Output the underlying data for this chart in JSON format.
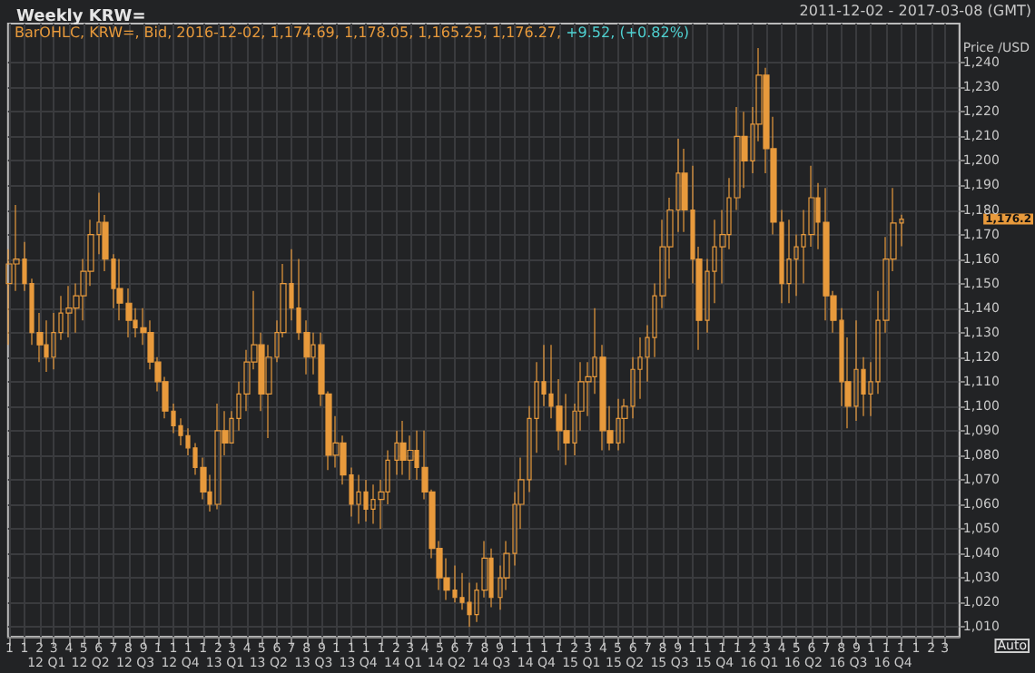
{
  "chart_data": {
    "type": "candlestick",
    "title": "Weekly KRW=",
    "subtitle": "2011-12-02 - 2017-03-08 (GMT)",
    "ylabel": "Price /USD",
    "color": "#e89a3c",
    "grid": true,
    "annotations": [
      "BarOHLC, KRW=, Bid, 2016-12-02, 1,174.69, 1,178.05, 1,165.25, 1,176.27,",
      "+9.52, (+0.82%)",
      "1,176.2",
      "Auto"
    ],
    "x": [
      "2011-12-01",
      "2011-12-15",
      "2012-01-01",
      "2012-01-15",
      "2012-02-01",
      "2012-02-15",
      "2012-03-01",
      "2012-03-15",
      "2012-04-01",
      "2012-04-15",
      "2012-05-01",
      "2012-05-15",
      "2012-06-01",
      "2012-06-15",
      "2012-07-01",
      "2012-07-15",
      "2012-08-01",
      "2012-08-15",
      "2012-09-01",
      "2012-09-15",
      "2012-10-01",
      "2012-10-15",
      "2012-11-01",
      "2012-11-15",
      "2012-12-01",
      "2012-12-15",
      "2013-01-01",
      "2013-01-15",
      "2013-02-01",
      "2013-02-15",
      "2013-03-01",
      "2013-03-15",
      "2013-04-01",
      "2013-04-15",
      "2013-05-01",
      "2013-05-15",
      "2013-06-01",
      "2013-06-15",
      "2013-07-01",
      "2013-07-15",
      "2013-08-01",
      "2013-08-15",
      "2013-09-01",
      "2013-09-15",
      "2013-10-01",
      "2013-10-15",
      "2013-11-01",
      "2013-11-15",
      "2013-12-01",
      "2013-12-15",
      "2014-01-01",
      "2014-01-15",
      "2014-02-01",
      "2014-02-15",
      "2014-03-01",
      "2014-03-15",
      "2014-04-01",
      "2014-04-15",
      "2014-05-01",
      "2014-05-15",
      "2014-06-01",
      "2014-06-15",
      "2014-07-01",
      "2014-07-15",
      "2014-08-01",
      "2014-08-15",
      "2014-09-01",
      "2014-09-15",
      "2014-10-01",
      "2014-10-15",
      "2014-11-01",
      "2014-11-15",
      "2014-12-01",
      "2014-12-15",
      "2015-01-01",
      "2015-01-15",
      "2015-02-01",
      "2015-02-15",
      "2015-03-01",
      "2015-03-15",
      "2015-04-01",
      "2015-04-15",
      "2015-05-01",
      "2015-05-15",
      "2015-06-01",
      "2015-06-15",
      "2015-07-01",
      "2015-07-15",
      "2015-08-01",
      "2015-08-15",
      "2015-09-01",
      "2015-09-15",
      "2015-10-01",
      "2015-10-15",
      "2015-11-01",
      "2015-11-15",
      "2015-12-01",
      "2015-12-15",
      "2016-01-01",
      "2016-01-15",
      "2016-02-01",
      "2016-02-15",
      "2016-03-01",
      "2016-03-15",
      "2016-04-01",
      "2016-04-15",
      "2016-05-01",
      "2016-05-15",
      "2016-06-01",
      "2016-06-15",
      "2016-07-01",
      "2016-07-15",
      "2016-08-01",
      "2016-08-15",
      "2016-09-01",
      "2016-09-15",
      "2016-10-01",
      "2016-10-15",
      "2016-11-01",
      "2016-11-15",
      "2016-12-02"
    ],
    "ohlc": [
      [
        1150,
        1164,
        1125,
        1158
      ],
      [
        1158,
        1182,
        1147,
        1160
      ],
      [
        1160,
        1167,
        1147,
        1150
      ],
      [
        1150,
        1152,
        1125,
        1130
      ],
      [
        1130,
        1138,
        1118,
        1125
      ],
      [
        1125,
        1135,
        1114,
        1120
      ],
      [
        1120,
        1138,
        1115,
        1130
      ],
      [
        1130,
        1145,
        1127,
        1138
      ],
      [
        1138,
        1149,
        1128,
        1140
      ],
      [
        1140,
        1150,
        1130,
        1145
      ],
      [
        1145,
        1160,
        1135,
        1155
      ],
      [
        1155,
        1176,
        1149,
        1170
      ],
      [
        1170,
        1187,
        1162,
        1175
      ],
      [
        1175,
        1178,
        1155,
        1160
      ],
      [
        1160,
        1162,
        1140,
        1148
      ],
      [
        1148,
        1160,
        1135,
        1142
      ],
      [
        1142,
        1148,
        1128,
        1135
      ],
      [
        1135,
        1140,
        1128,
        1132
      ],
      [
        1132,
        1140,
        1125,
        1130
      ],
      [
        1130,
        1135,
        1115,
        1118
      ],
      [
        1118,
        1120,
        1106,
        1110
      ],
      [
        1110,
        1112,
        1095,
        1098
      ],
      [
        1098,
        1101,
        1089,
        1092
      ],
      [
        1092,
        1095,
        1084,
        1088
      ],
      [
        1088,
        1091,
        1080,
        1083
      ],
      [
        1083,
        1085,
        1072,
        1075
      ],
      [
        1075,
        1079,
        1062,
        1065
      ],
      [
        1065,
        1072,
        1057,
        1060
      ],
      [
        1060,
        1101,
        1058,
        1090
      ],
      [
        1090,
        1098,
        1080,
        1085
      ],
      [
        1085,
        1098,
        1085,
        1095
      ],
      [
        1095,
        1110,
        1090,
        1105
      ],
      [
        1105,
        1123,
        1098,
        1118
      ],
      [
        1118,
        1147,
        1115,
        1125
      ],
      [
        1125,
        1130,
        1098,
        1105
      ],
      [
        1105,
        1125,
        1087,
        1120
      ],
      [
        1120,
        1135,
        1118,
        1130
      ],
      [
        1130,
        1158,
        1128,
        1150
      ],
      [
        1150,
        1164,
        1135,
        1140
      ],
      [
        1140,
        1160,
        1127,
        1130
      ],
      [
        1130,
        1135,
        1113,
        1120
      ],
      [
        1120,
        1130,
        1113,
        1125
      ],
      [
        1125,
        1130,
        1100,
        1105
      ],
      [
        1105,
        1106,
        1074,
        1080
      ],
      [
        1080,
        1096,
        1075,
        1085
      ],
      [
        1085,
        1088,
        1068,
        1072
      ],
      [
        1072,
        1075,
        1055,
        1060
      ],
      [
        1060,
        1072,
        1052,
        1065
      ],
      [
        1065,
        1070,
        1053,
        1058
      ],
      [
        1058,
        1068,
        1052,
        1062
      ],
      [
        1062,
        1070,
        1050,
        1065
      ],
      [
        1065,
        1082,
        1060,
        1078
      ],
      [
        1078,
        1090,
        1072,
        1085
      ],
      [
        1085,
        1094,
        1072,
        1078
      ],
      [
        1078,
        1088,
        1070,
        1082
      ],
      [
        1082,
        1090,
        1070,
        1075
      ],
      [
        1075,
        1090,
        1062,
        1065
      ],
      [
        1065,
        1066,
        1038,
        1042
      ],
      [
        1042,
        1045,
        1025,
        1030
      ],
      [
        1030,
        1038,
        1021,
        1025
      ],
      [
        1025,
        1035,
        1020,
        1022
      ],
      [
        1022,
        1032,
        1017,
        1020
      ],
      [
        1020,
        1028,
        1010,
        1015
      ],
      [
        1015,
        1028,
        1012,
        1025
      ],
      [
        1025,
        1045,
        1022,
        1038
      ],
      [
        1038,
        1042,
        1018,
        1022
      ],
      [
        1022,
        1035,
        1017,
        1030
      ],
      [
        1030,
        1045,
        1025,
        1040
      ],
      [
        1040,
        1065,
        1035,
        1060
      ],
      [
        1060,
        1079,
        1050,
        1070
      ],
      [
        1070,
        1100,
        1065,
        1095
      ],
      [
        1095,
        1118,
        1081,
        1110
      ],
      [
        1110,
        1125,
        1100,
        1105
      ],
      [
        1105,
        1125,
        1095,
        1100
      ],
      [
        1100,
        1111,
        1082,
        1090
      ],
      [
        1090,
        1105,
        1076,
        1085
      ],
      [
        1085,
        1101,
        1080,
        1098
      ],
      [
        1098,
        1118,
        1090,
        1110
      ],
      [
        1110,
        1118,
        1096,
        1112
      ],
      [
        1112,
        1140,
        1105,
        1120
      ],
      [
        1120,
        1125,
        1082,
        1090
      ],
      [
        1090,
        1100,
        1082,
        1085
      ],
      [
        1085,
        1103,
        1082,
        1095
      ],
      [
        1095,
        1103,
        1085,
        1100
      ],
      [
        1100,
        1120,
        1095,
        1115
      ],
      [
        1115,
        1128,
        1103,
        1120
      ],
      [
        1120,
        1133,
        1110,
        1128
      ],
      [
        1128,
        1150,
        1120,
        1145
      ],
      [
        1145,
        1176,
        1140,
        1165
      ],
      [
        1165,
        1185,
        1152,
        1180
      ],
      [
        1180,
        1209,
        1171,
        1195
      ],
      [
        1195,
        1205,
        1171,
        1180
      ],
      [
        1180,
        1198,
        1150,
        1160
      ],
      [
        1160,
        1165,
        1123,
        1135
      ],
      [
        1135,
        1160,
        1130,
        1155
      ],
      [
        1155,
        1176,
        1142,
        1165
      ],
      [
        1165,
        1180,
        1150,
        1170
      ],
      [
        1170,
        1193,
        1164,
        1185
      ],
      [
        1185,
        1222,
        1180,
        1210
      ],
      [
        1210,
        1220,
        1189,
        1200
      ],
      [
        1200,
        1222,
        1195,
        1215
      ],
      [
        1215,
        1246,
        1208,
        1235
      ],
      [
        1235,
        1238,
        1195,
        1205
      ],
      [
        1205,
        1218,
        1170,
        1175
      ],
      [
        1175,
        1180,
        1142,
        1150
      ],
      [
        1150,
        1176,
        1142,
        1160
      ],
      [
        1160,
        1170,
        1145,
        1165
      ],
      [
        1165,
        1180,
        1150,
        1170
      ],
      [
        1170,
        1198,
        1165,
        1185
      ],
      [
        1185,
        1191,
        1164,
        1175
      ],
      [
        1175,
        1189,
        1135,
        1145
      ],
      [
        1145,
        1147,
        1130,
        1135
      ],
      [
        1135,
        1140,
        1100,
        1110
      ],
      [
        1110,
        1128,
        1091,
        1100
      ],
      [
        1100,
        1135,
        1094,
        1115
      ],
      [
        1115,
        1120,
        1096,
        1105
      ],
      [
        1105,
        1118,
        1096,
        1110
      ],
      [
        1110,
        1147,
        1105,
        1135
      ],
      [
        1135,
        1169,
        1130,
        1160
      ],
      [
        1160,
        1189,
        1155,
        1174.69
      ],
      [
        1174.69,
        1178.05,
        1165.25,
        1176.27
      ]
    ],
    "xlim": [
      "2011-11-28",
      "2017-03-31"
    ],
    "xticks": [
      {
        "value": "2011-12-01",
        "label": "1"
      },
      {
        "value": "2012-01-01",
        "label": "1"
      },
      {
        "value": "2012-02-01",
        "label": "2"
      },
      {
        "value": "2012-03-01",
        "label": "3"
      },
      {
        "value": "2012-04-01",
        "label": "4"
      },
      {
        "value": "2012-05-01",
        "label": "5"
      },
      {
        "value": "2012-06-01",
        "label": "6"
      },
      {
        "value": "2012-07-01",
        "label": "7"
      },
      {
        "value": "2012-08-01",
        "label": "8"
      },
      {
        "value": "2012-09-01",
        "label": "9"
      },
      {
        "value": "2012-10-01",
        "label": "1"
      },
      {
        "value": "2012-11-01",
        "label": "1"
      },
      {
        "value": "2012-12-01",
        "label": "1"
      },
      {
        "value": "2013-01-01",
        "label": "1"
      },
      {
        "value": "2013-02-01",
        "label": "2"
      },
      {
        "value": "2013-03-01",
        "label": "3"
      },
      {
        "value": "2013-04-01",
        "label": "4"
      },
      {
        "value": "2013-05-01",
        "label": "5"
      },
      {
        "value": "2013-06-01",
        "label": "6"
      },
      {
        "value": "2013-07-01",
        "label": "7"
      },
      {
        "value": "2013-08-01",
        "label": "8"
      },
      {
        "value": "2013-09-01",
        "label": "9"
      },
      {
        "value": "2013-10-01",
        "label": "1"
      },
      {
        "value": "2013-11-01",
        "label": "1"
      },
      {
        "value": "2013-12-01",
        "label": "1"
      },
      {
        "value": "2014-01-01",
        "label": "1"
      },
      {
        "value": "2014-02-01",
        "label": "2"
      },
      {
        "value": "2014-03-01",
        "label": "3"
      },
      {
        "value": "2014-04-01",
        "label": "4"
      },
      {
        "value": "2014-05-01",
        "label": "5"
      },
      {
        "value": "2014-06-01",
        "label": "6"
      },
      {
        "value": "2014-07-01",
        "label": "7"
      },
      {
        "value": "2014-08-01",
        "label": "8"
      },
      {
        "value": "2014-09-01",
        "label": "9"
      },
      {
        "value": "2014-10-01",
        "label": "1"
      },
      {
        "value": "2014-11-01",
        "label": "1"
      },
      {
        "value": "2014-12-01",
        "label": "1"
      },
      {
        "value": "2015-01-01",
        "label": "1"
      },
      {
        "value": "2015-02-01",
        "label": "2"
      },
      {
        "value": "2015-03-01",
        "label": "3"
      },
      {
        "value": "2015-04-01",
        "label": "4"
      },
      {
        "value": "2015-05-01",
        "label": "5"
      },
      {
        "value": "2015-06-01",
        "label": "6"
      },
      {
        "value": "2015-07-01",
        "label": "7"
      },
      {
        "value": "2015-08-01",
        "label": "8"
      },
      {
        "value": "2015-09-01",
        "label": "9"
      },
      {
        "value": "2015-10-01",
        "label": "1"
      },
      {
        "value": "2015-11-01",
        "label": "1"
      },
      {
        "value": "2015-12-01",
        "label": "1"
      },
      {
        "value": "2016-01-01",
        "label": "1"
      },
      {
        "value": "2016-02-01",
        "label": "2"
      },
      {
        "value": "2016-03-01",
        "label": "3"
      },
      {
        "value": "2016-04-01",
        "label": "4"
      },
      {
        "value": "2016-05-01",
        "label": "5"
      },
      {
        "value": "2016-06-01",
        "label": "6"
      },
      {
        "value": "2016-07-01",
        "label": "7"
      },
      {
        "value": "2016-08-01",
        "label": "8"
      },
      {
        "value": "2016-09-01",
        "label": "9"
      },
      {
        "value": "2016-10-01",
        "label": "1"
      },
      {
        "value": "2016-11-01",
        "label": "1"
      },
      {
        "value": "2016-12-01",
        "label": "1"
      },
      {
        "value": "2017-01-01",
        "label": "1"
      },
      {
        "value": "2017-02-01",
        "label": "2"
      },
      {
        "value": "2017-03-01",
        "label": "3"
      }
    ],
    "x2lim": [
      "2011-11-28",
      "2017-03-31"
    ],
    "x2ticks": [
      {
        "value": "2012-02-15",
        "label": "12 Q1"
      },
      {
        "value": "2012-05-15",
        "label": "12 Q2"
      },
      {
        "value": "2012-08-15",
        "label": "12 Q3"
      },
      {
        "value": "2012-11-15",
        "label": "12 Q4"
      },
      {
        "value": "2013-02-15",
        "label": "13 Q1"
      },
      {
        "value": "2013-05-15",
        "label": "13 Q2"
      },
      {
        "value": "2013-08-15",
        "label": "13 Q3"
      },
      {
        "value": "2013-11-15",
        "label": "13 Q4"
      },
      {
        "value": "2014-02-15",
        "label": "14 Q1"
      },
      {
        "value": "2014-05-15",
        "label": "14 Q2"
      },
      {
        "value": "2014-08-15",
        "label": "14 Q3"
      },
      {
        "value": "2014-11-15",
        "label": "14 Q4"
      },
      {
        "value": "2015-02-15",
        "label": "15 Q1"
      },
      {
        "value": "2015-05-15",
        "label": "15 Q2"
      },
      {
        "value": "2015-08-15",
        "label": "15 Q3"
      },
      {
        "value": "2015-11-15",
        "label": "15 Q4"
      },
      {
        "value": "2016-02-15",
        "label": "16 Q1"
      },
      {
        "value": "2016-05-15",
        "label": "16 Q2"
      },
      {
        "value": "2016-08-15",
        "label": "16 Q3"
      },
      {
        "value": "2016-11-15",
        "label": "16 Q4"
      }
    ],
    "ylim": [
      1006,
      1256
    ],
    "yticks": [
      {
        "value": 1010,
        "label": "1,010"
      },
      {
        "value": 1020,
        "label": "1,020"
      },
      {
        "value": 1030,
        "label": "1,030"
      },
      {
        "value": 1040,
        "label": "1,040"
      },
      {
        "value": 1050,
        "label": "1,050"
      },
      {
        "value": 1060,
        "label": "1,060"
      },
      {
        "value": 1070,
        "label": "1,070"
      },
      {
        "value": 1080,
        "label": "1,080"
      },
      {
        "value": 1090,
        "label": "1,090"
      },
      {
        "value": 1100,
        "label": "1,100"
      },
      {
        "value": 1110,
        "label": "1,110"
      },
      {
        "value": 1120,
        "label": "1,120"
      },
      {
        "value": 1130,
        "label": "1,130"
      },
      {
        "value": 1140,
        "label": "1,140"
      },
      {
        "value": 1150,
        "label": "1,150"
      },
      {
        "value": 1160,
        "label": "1,160"
      },
      {
        "value": 1170,
        "label": "1,170"
      },
      {
        "value": 1180,
        "label": "1,180"
      },
      {
        "value": 1190,
        "label": "1,190"
      },
      {
        "value": 1200,
        "label": "1,200"
      },
      {
        "value": 1210,
        "label": "1,210"
      },
      {
        "value": 1220,
        "label": "1,220"
      },
      {
        "value": 1230,
        "label": "1,230"
      },
      {
        "value": 1240,
        "label": "1,240"
      }
    ]
  }
}
